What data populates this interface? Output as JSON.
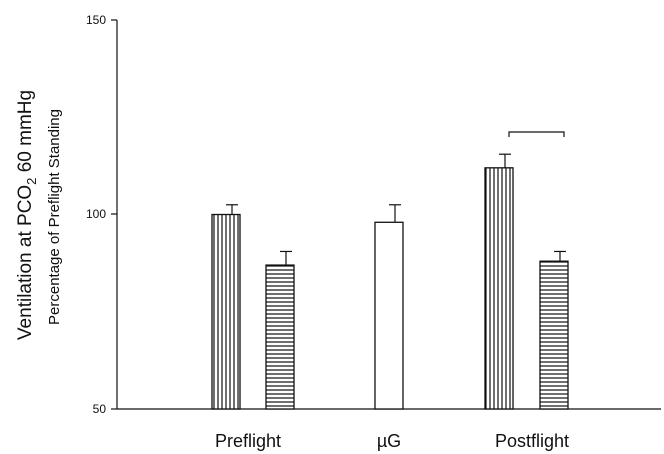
{
  "chart_data": {
    "type": "bar",
    "ylabel": {
      "main_prefix": "Ventilation at PCO",
      "main_subscript": "2",
      "main_suffix": " 60 mmHg",
      "sub": "Percentage of Preflight Standing"
    },
    "ylim": [
      50,
      150
    ],
    "yticks": [
      50,
      100,
      150
    ],
    "tick_labels": [
      "50",
      "100",
      "150"
    ],
    "grid": false,
    "legend": "none",
    "categories": [
      "Preflight",
      "µG",
      "Postflight"
    ],
    "bars": [
      {
        "category": "Preflight",
        "pattern": "vertical-stripes",
        "value": 100,
        "error": 2.5
      },
      {
        "category": "Preflight",
        "pattern": "horizontal-stripes",
        "value": 87,
        "error": 3.5
      },
      {
        "category": "µG",
        "pattern": "open",
        "value": 98,
        "error": 4.5
      },
      {
        "category": "Postflight",
        "pattern": "vertical-stripes",
        "value": 112,
        "error": 3.5
      },
      {
        "category": "Postflight",
        "pattern": "horizontal-stripes",
        "value": 88,
        "error": 2.5
      }
    ],
    "annotations": [
      {
        "type": "significance-bracket",
        "between": [
          3,
          4
        ]
      }
    ],
    "colors": {
      "ink": "#111111",
      "background": "#ffffff"
    }
  }
}
